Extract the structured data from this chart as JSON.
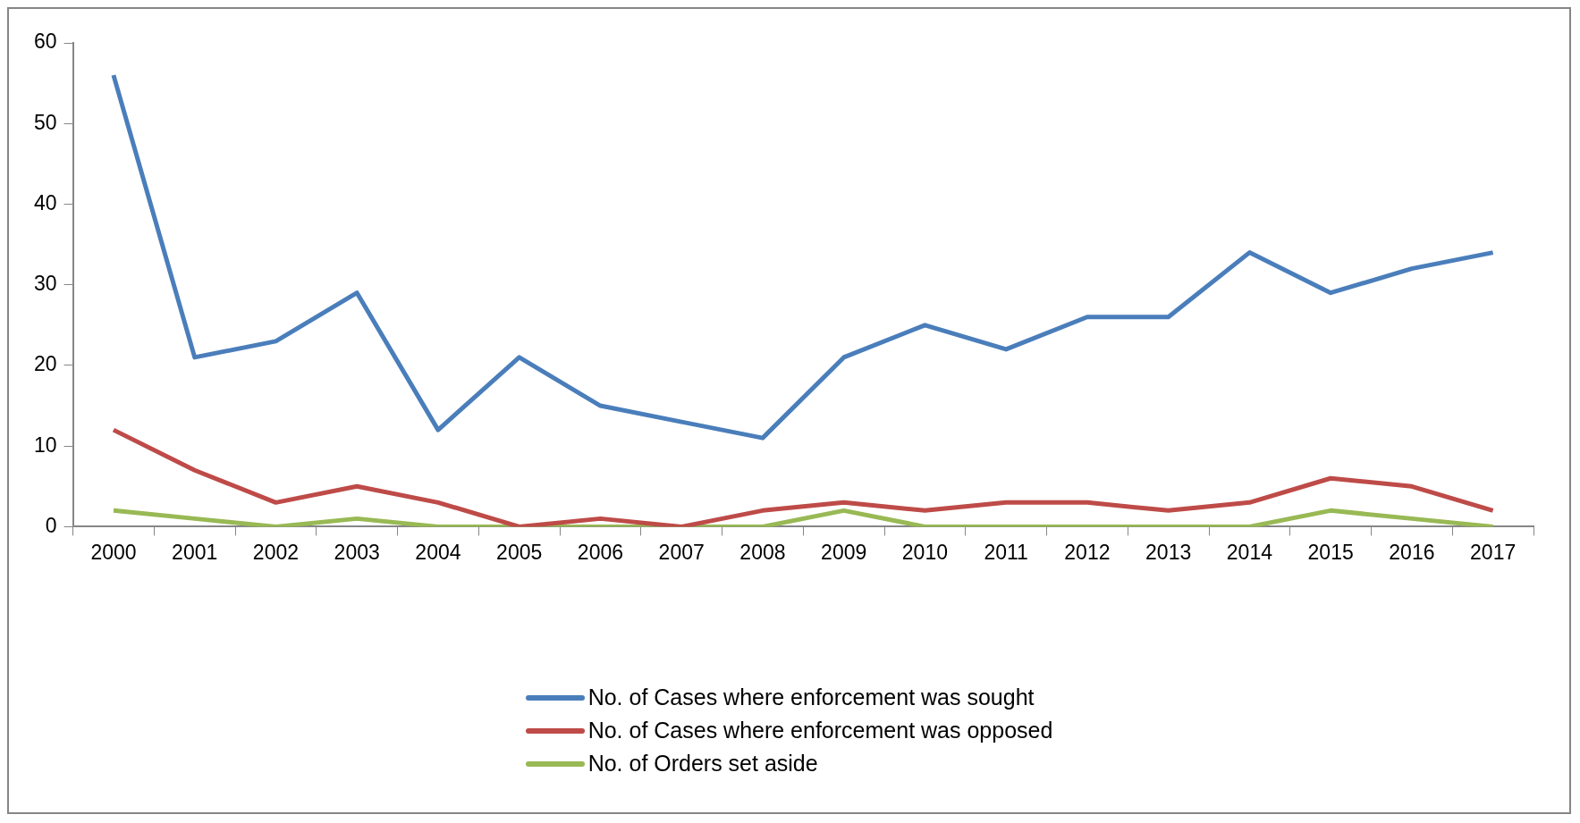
{
  "chart_data": {
    "type": "line",
    "categories": [
      "2000",
      "2001",
      "2002",
      "2003",
      "2004",
      "2005",
      "2006",
      "2007",
      "2008",
      "2009",
      "2010",
      "2011",
      "2012",
      "2013",
      "2014",
      "2015",
      "2016",
      "2017"
    ],
    "series": [
      {
        "name": "No. of Cases where enforcement was sought",
        "color": "#4a7ebb",
        "values": [
          56,
          21,
          23,
          29,
          12,
          21,
          15,
          13,
          11,
          21,
          25,
          22,
          26,
          26,
          34,
          29,
          32,
          34
        ]
      },
      {
        "name": "No. of Cases where enforcement was opposed",
        "color": "#be4b48",
        "values": [
          12,
          7,
          3,
          5,
          3,
          0,
          1,
          0,
          2,
          3,
          2,
          3,
          3,
          2,
          3,
          6,
          5,
          2
        ]
      },
      {
        "name": "No. of Orders set aside",
        "color": "#98b954",
        "values": [
          2,
          1,
          0,
          1,
          0,
          0,
          0,
          0,
          0,
          2,
          0,
          0,
          0,
          0,
          0,
          2,
          1,
          0
        ]
      }
    ],
    "ylim": [
      0,
      60
    ],
    "yticks": [
      0,
      10,
      20,
      30,
      40,
      50,
      60
    ],
    "grid": false,
    "legend": "bottom",
    "marker": "none",
    "line_style": "solid"
  }
}
